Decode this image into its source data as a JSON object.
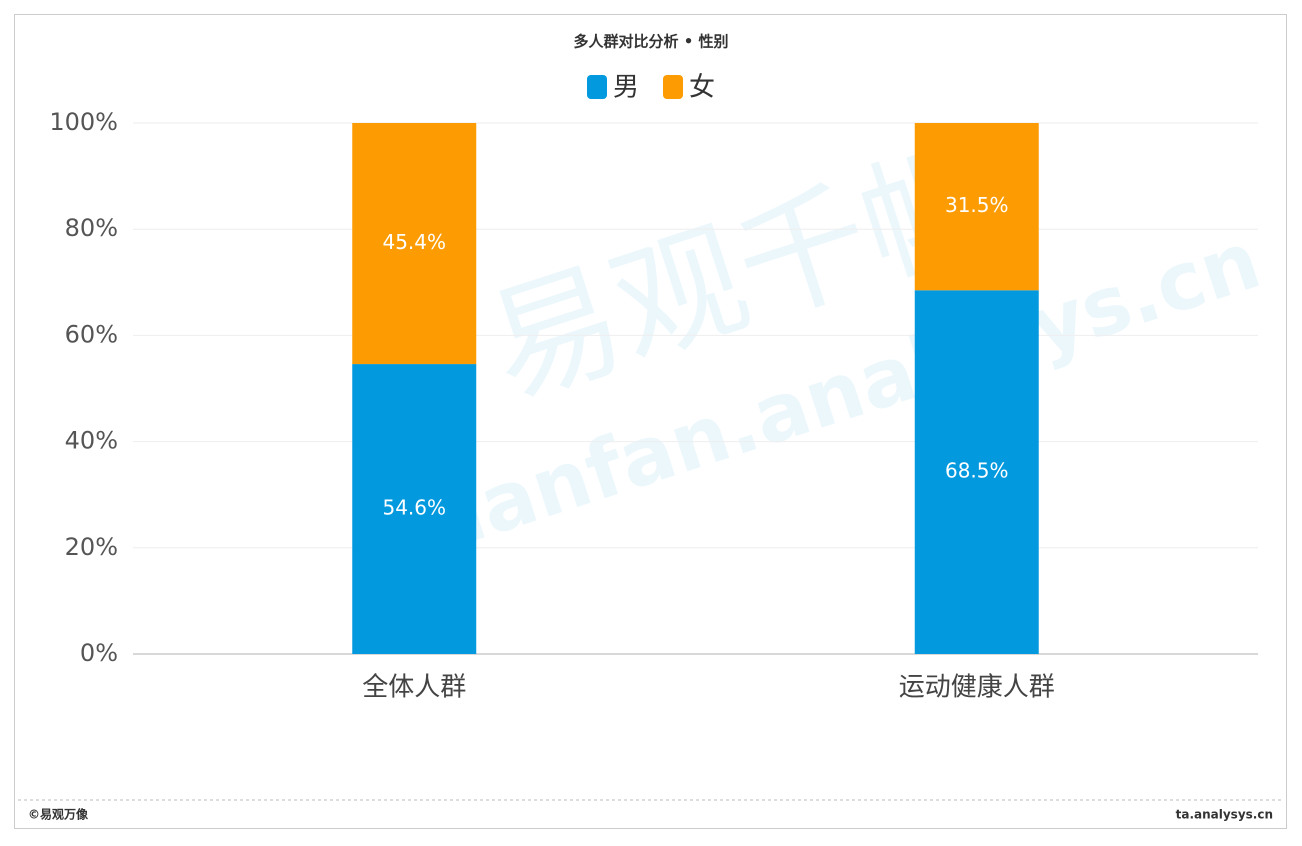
{
  "chart_data": {
    "type": "stacked_bar",
    "title": "多人群对比分析 • 性别",
    "categories": [
      "全体人群",
      "运动健康人群"
    ],
    "series": [
      {
        "name": "男",
        "color": "#0399df",
        "values": [
          54.6,
          68.5
        ],
        "value_labels": [
          "54.6%",
          "68.5%"
        ]
      },
      {
        "name": "女",
        "color": "#fd9c02",
        "values": [
          45.4,
          31.5
        ],
        "value_labels": [
          "45.4%",
          "31.5%"
        ]
      }
    ],
    "ylim": [
      0,
      100
    ],
    "yticks": [
      {
        "value": 0,
        "label": "0%"
      },
      {
        "value": 20,
        "label": "20%"
      },
      {
        "value": 40,
        "label": "40%"
      },
      {
        "value": 60,
        "label": "60%"
      },
      {
        "value": 80,
        "label": "80%"
      },
      {
        "value": 100,
        "label": "100%"
      }
    ],
    "grid": true,
    "legend": "top",
    "watermark": [
      "易观千帆",
      "Qianfan.analysys.cn"
    ],
    "footer_left": "©易观万像",
    "footer_right": "ta.analysys.cn"
  }
}
